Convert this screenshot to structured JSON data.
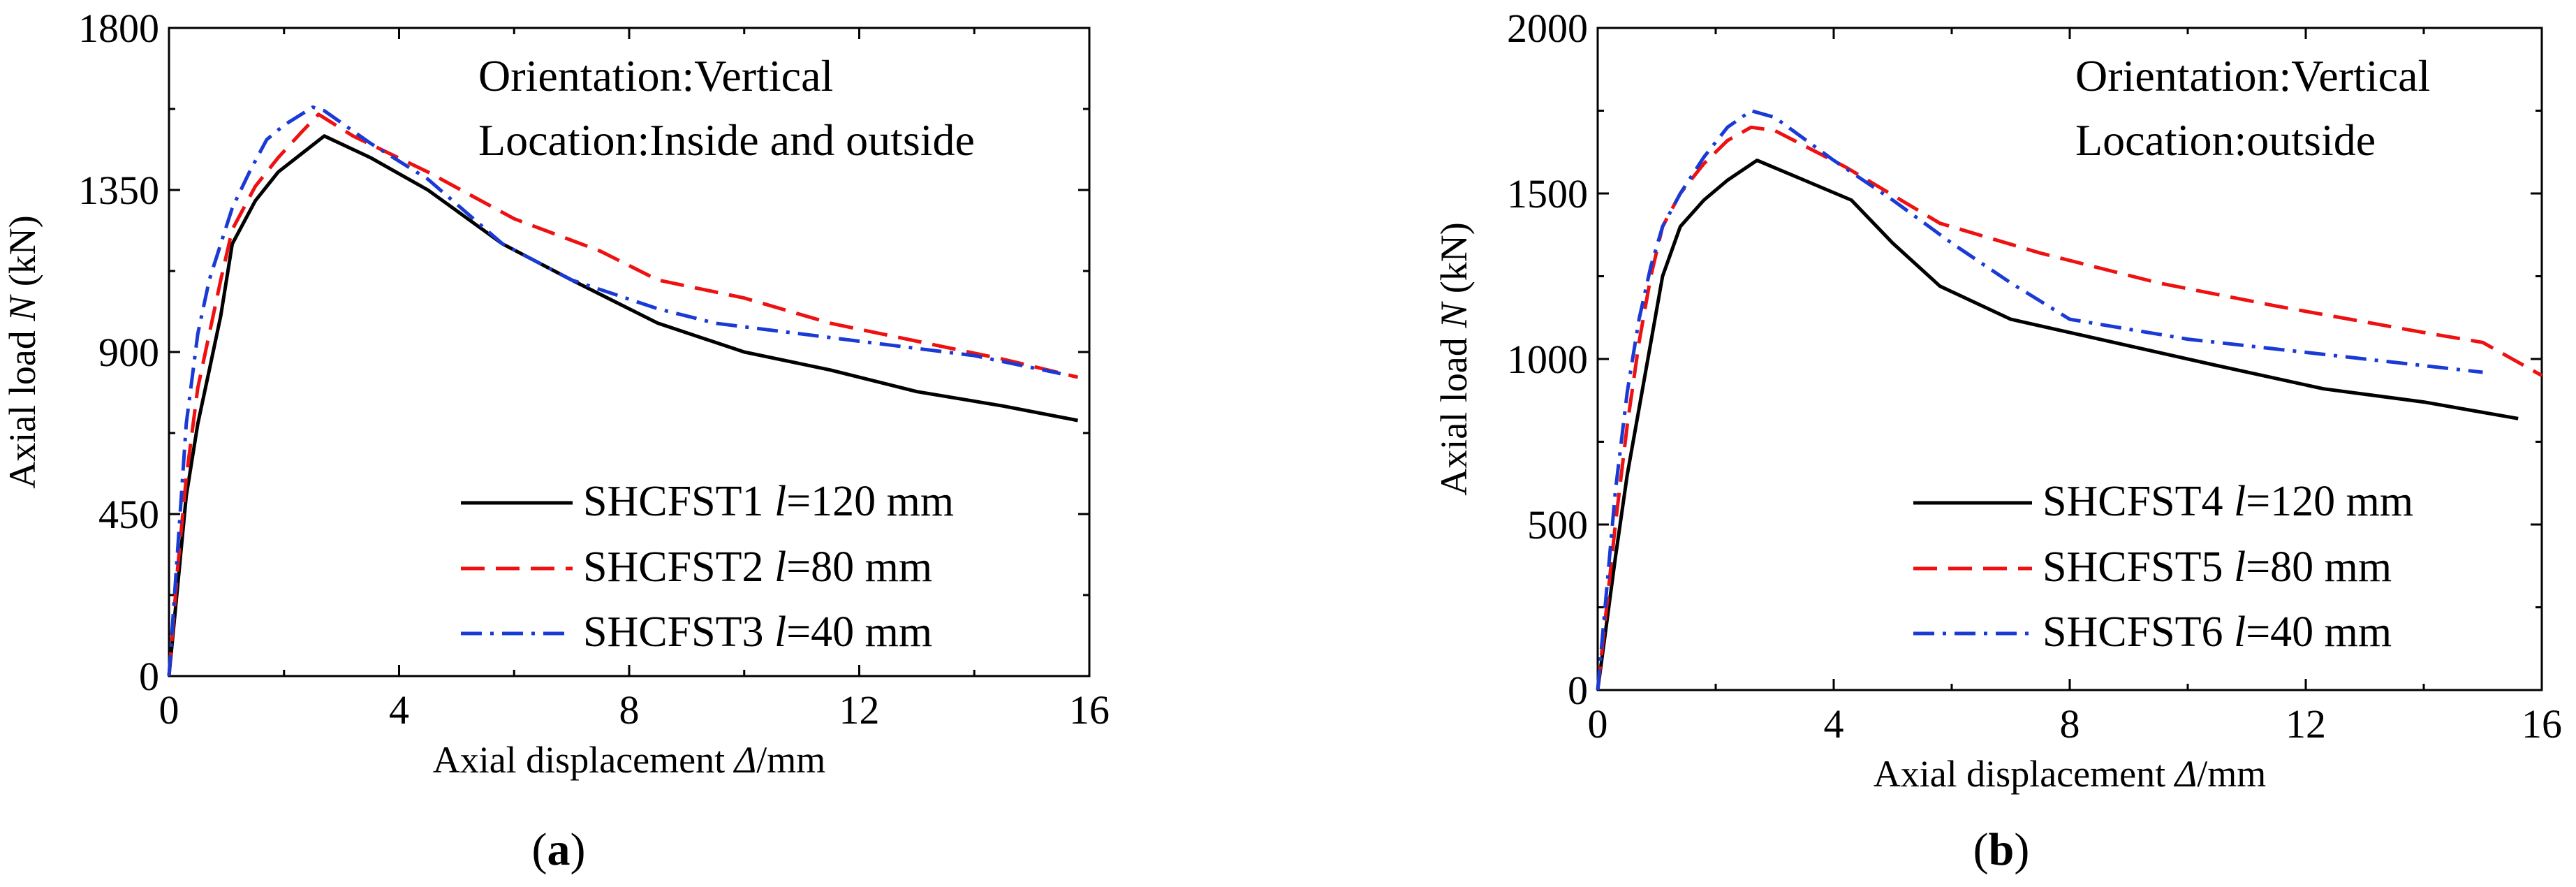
{
  "chart_data": [
    {
      "type": "line",
      "panel": "a",
      "caption_open": "(",
      "caption_letter": "a",
      "caption_close": ")",
      "xlabel_pre": "Axial displacement ",
      "xlabel_sym": "Δ",
      "xlabel_post": "/mm",
      "ylabel_pre": "Axial load ",
      "ylabel_sym": "N",
      "ylabel_post": " (kN)",
      "xlim": [
        0,
        16
      ],
      "ylim": [
        0,
        1800
      ],
      "xticks": [
        0,
        4,
        8,
        12,
        16
      ],
      "yticks": [
        0,
        450,
        900,
        1350,
        1800
      ],
      "annotations": [
        "Orientation:Vertical",
        "Location:Inside and outside"
      ],
      "legend_position": "bottom-right",
      "series": [
        {
          "name_pre": "SHCFST1 ",
          "name_sym": "l",
          "name_post": "=120 mm",
          "color": "#000000",
          "dash": "solid",
          "x": [
            0,
            0.15,
            0.3,
            0.5,
            0.7,
            0.9,
            1.1,
            1.5,
            1.9,
            2.3,
            2.7,
            3.5,
            4.5,
            5.8,
            7,
            8.5,
            10,
            11.5,
            13,
            14.5,
            15.8
          ],
          "y": [
            0,
            250,
            500,
            700,
            850,
            1000,
            1200,
            1320,
            1400,
            1450,
            1500,
            1440,
            1350,
            1200,
            1100,
            980,
            900,
            850,
            790,
            750,
            710
          ]
        },
        {
          "name_pre": "SHCFST2 ",
          "name_sym": "l",
          "name_post": "=80 mm",
          "color": "#ee1111",
          "dash": "dashed",
          "x": [
            0,
            0.15,
            0.3,
            0.5,
            0.7,
            0.9,
            1.1,
            1.5,
            1.9,
            2.3,
            2.6,
            3.2,
            4.5,
            6,
            7.5,
            8.5,
            10,
            11.5,
            13,
            14.5,
            15.8
          ],
          "y": [
            0,
            300,
            550,
            800,
            950,
            1100,
            1240,
            1360,
            1440,
            1510,
            1560,
            1500,
            1400,
            1270,
            1180,
            1100,
            1050,
            980,
            930,
            880,
            830
          ]
        },
        {
          "name_pre": "SHCFST3 ",
          "name_sym": "l",
          "name_post": "=40 mm",
          "color": "#1a3ad6",
          "dash": "dashdot",
          "x": [
            0,
            0.15,
            0.3,
            0.5,
            0.7,
            0.9,
            1.1,
            1.4,
            1.7,
            2.0,
            2.3,
            2.5,
            2.7,
            3.5,
            4.5,
            5.8,
            7,
            8.5,
            9.5,
            11,
            12.5,
            14,
            15.5
          ],
          "y": [
            0,
            350,
            700,
            950,
            1100,
            1200,
            1300,
            1400,
            1490,
            1530,
            1560,
            1580,
            1570,
            1480,
            1380,
            1200,
            1100,
            1020,
            980,
            950,
            920,
            890,
            840
          ]
        }
      ]
    },
    {
      "type": "line",
      "panel": "b",
      "caption_open": "(",
      "caption_letter": "b",
      "caption_close": ")",
      "xlabel_pre": "Axial displacement ",
      "xlabel_sym": "Δ",
      "xlabel_post": "/mm",
      "ylabel_pre": "Axial load ",
      "ylabel_sym": "N",
      "ylabel_post": " (kN)",
      "xlim": [
        0,
        16
      ],
      "ylim": [
        0,
        2000
      ],
      "xticks": [
        0,
        4,
        8,
        12,
        16
      ],
      "yticks": [
        0,
        500,
        1000,
        1500,
        2000
      ],
      "annotations": [
        "Orientation:Vertical",
        "Location:outside"
      ],
      "legend_position": "bottom-right",
      "series": [
        {
          "name_pre": "SHCFST4 ",
          "name_sym": "l",
          "name_post": "=120 mm",
          "color": "#000000",
          "dash": "solid",
          "x": [
            0,
            0.15,
            0.3,
            0.5,
            0.7,
            0.9,
            1.1,
            1.4,
            1.8,
            2.2,
            2.7,
            3.5,
            4.3,
            5,
            5.8,
            7,
            8.5,
            10.5,
            12.3,
            14,
            15.6
          ],
          "y": [
            0,
            200,
            400,
            650,
            850,
            1050,
            1250,
            1400,
            1480,
            1540,
            1600,
            1540,
            1480,
            1350,
            1220,
            1120,
            1060,
            980,
            910,
            870,
            820
          ]
        },
        {
          "name_pre": "SHCFST5 ",
          "name_sym": "l",
          "name_post": "=80 mm",
          "color": "#ee1111",
          "dash": "dashed",
          "x": [
            0,
            0.15,
            0.3,
            0.5,
            0.7,
            0.9,
            1.1,
            1.4,
            1.8,
            2.2,
            2.6,
            3.0,
            4.2,
            5.8,
            7.5,
            9.5,
            11.5,
            14,
            15,
            16
          ],
          "y": [
            0,
            250,
            500,
            800,
            1050,
            1250,
            1400,
            1500,
            1590,
            1660,
            1700,
            1690,
            1580,
            1410,
            1320,
            1230,
            1160,
            1080,
            1050,
            950
          ]
        },
        {
          "name_pre": "SHCFST6 ",
          "name_sym": "l",
          "name_post": "=40 mm",
          "color": "#1a3ad6",
          "dash": "dashdot",
          "x": [
            0,
            0.15,
            0.3,
            0.5,
            0.7,
            0.9,
            1.1,
            1.4,
            1.8,
            2.2,
            2.6,
            3.0,
            4.0,
            5.0,
            6.0,
            7.0,
            8.0,
            10.0,
            12.0,
            14.0,
            15.0
          ],
          "y": [
            0,
            300,
            600,
            900,
            1120,
            1280,
            1400,
            1500,
            1610,
            1700,
            1750,
            1730,
            1600,
            1480,
            1350,
            1230,
            1120,
            1060,
            1020,
            980,
            960
          ]
        }
      ]
    }
  ]
}
